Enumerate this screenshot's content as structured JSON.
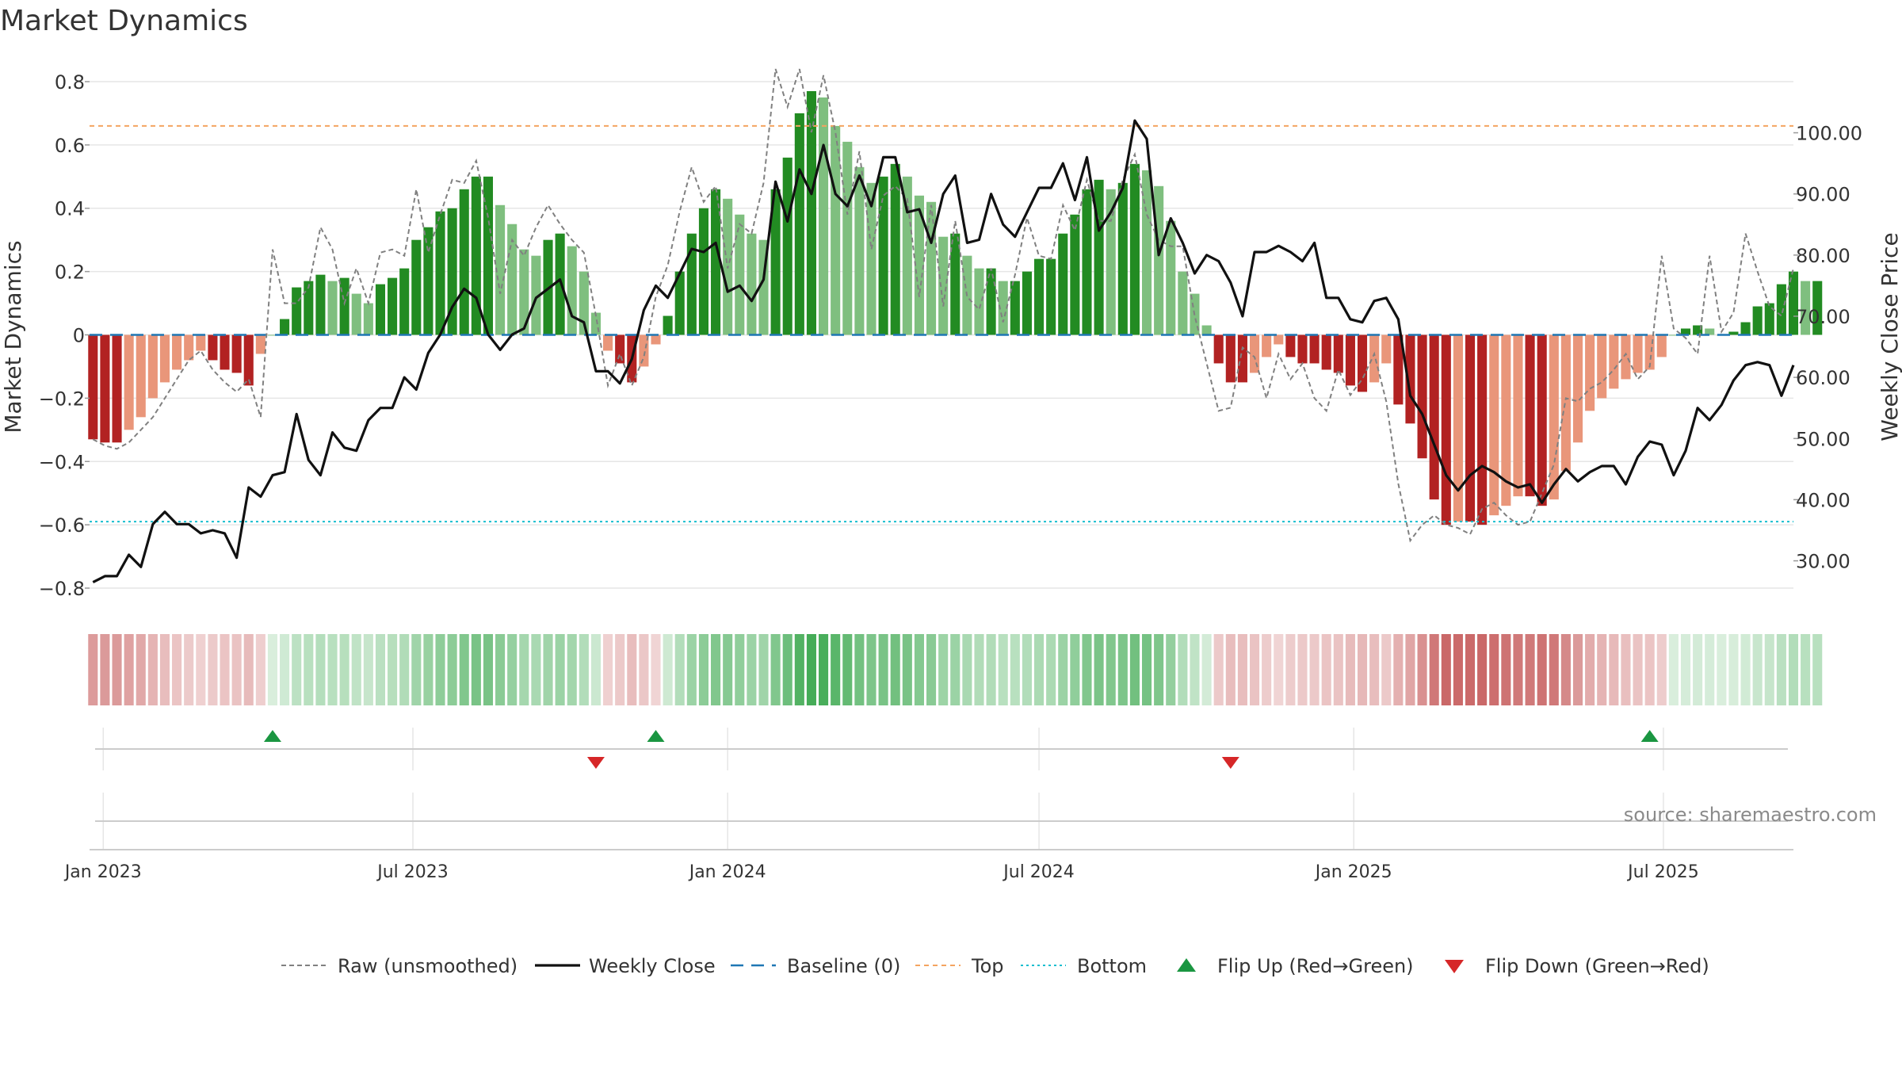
{
  "chart_data": {
    "type": "bar",
    "title": "Market Dynamics",
    "ylabel": "Market Dynamics",
    "ylabel_right": "Weekly Close Price",
    "ylim": [
      -0.82,
      0.82
    ],
    "ylim_right": [
      24.5,
      109.4
    ],
    "yticks": [
      {
        "value": 0.8,
        "label": "0.8"
      },
      {
        "value": 0.6,
        "label": "0.6"
      },
      {
        "value": 0.4,
        "label": "0.4"
      },
      {
        "value": 0.2,
        "label": "0.2"
      },
      {
        "value": 0,
        "label": "0"
      },
      {
        "value": -0.2,
        "label": "−0.2"
      },
      {
        "value": -0.4,
        "label": "−0.4"
      },
      {
        "value": -0.6,
        "label": "−0.6"
      },
      {
        "value": -0.8,
        "label": "−0.8"
      }
    ],
    "yticks_right": [
      {
        "value": 100,
        "label": "100.00"
      },
      {
        "value": 90,
        "label": "90.00"
      },
      {
        "value": 80,
        "label": "80.00"
      },
      {
        "value": 70,
        "label": "70.00"
      },
      {
        "value": 60,
        "label": "60.00"
      },
      {
        "value": 50,
        "label": "50.00"
      },
      {
        "value": 40,
        "label": "40.00"
      },
      {
        "value": 30,
        "label": "30.00"
      }
    ],
    "xlim": [
      "2022-12-24",
      "2025-09-15"
    ],
    "xticks": [
      {
        "date": "2023-01-01",
        "label": "Jan 2023"
      },
      {
        "date": "2023-07-01",
        "label": "Jul 2023"
      },
      {
        "date": "2024-01-01",
        "label": "Jan 2024"
      },
      {
        "date": "2024-07-01",
        "label": "Jul 2024"
      },
      {
        "date": "2025-01-01",
        "label": "Jan 2025"
      },
      {
        "date": "2025-07-01",
        "label": "Jul 2025"
      }
    ],
    "start_date": "2022-12-26",
    "week_step_days": 7,
    "smoothed": [
      -0.33,
      -0.34,
      -0.34,
      -0.3,
      -0.26,
      -0.2,
      -0.15,
      -0.11,
      -0.08,
      -0.05,
      -0.08,
      -0.11,
      -0.12,
      -0.16,
      -0.06,
      0.0,
      0.05,
      0.15,
      0.17,
      0.19,
      0.17,
      0.18,
      0.13,
      0.1,
      0.16,
      0.18,
      0.21,
      0.3,
      0.34,
      0.39,
      0.4,
      0.46,
      0.5,
      0.5,
      0.41,
      0.35,
      0.27,
      0.25,
      0.3,
      0.32,
      0.28,
      0.2,
      0.07,
      -0.05,
      -0.09,
      -0.15,
      -0.1,
      -0.03,
      0.06,
      0.2,
      0.32,
      0.4,
      0.46,
      0.43,
      0.38,
      0.32,
      0.3,
      0.46,
      0.56,
      0.7,
      0.77,
      0.75,
      0.66,
      0.61,
      0.53,
      0.48,
      0.5,
      0.54,
      0.5,
      0.44,
      0.42,
      0.31,
      0.32,
      0.25,
      0.21,
      0.21,
      0.17,
      0.17,
      0.2,
      0.24,
      0.24,
      0.32,
      0.38,
      0.46,
      0.49,
      0.46,
      0.48,
      0.54,
      0.52,
      0.47,
      0.36,
      0.2,
      0.13,
      0.03,
      -0.09,
      -0.15,
      -0.15,
      -0.12,
      -0.07,
      -0.03,
      -0.07,
      -0.09,
      -0.09,
      -0.11,
      -0.12,
      -0.16,
      -0.18,
      -0.15,
      -0.09,
      -0.22,
      -0.28,
      -0.39,
      -0.52,
      -0.6,
      -0.59,
      -0.59,
      -0.6,
      -0.57,
      -0.54,
      -0.51,
      -0.51,
      -0.54,
      -0.52,
      -0.43,
      -0.34,
      -0.24,
      -0.2,
      -0.17,
      -0.14,
      -0.12,
      -0.11,
      -0.07,
      0.0,
      0.02,
      0.03,
      0.02,
      0.0,
      0.01,
      0.04,
      0.09,
      0.1,
      0.16,
      0.2,
      0.17,
      0.17
    ],
    "raw": [
      -0.33,
      -0.35,
      -0.36,
      -0.34,
      -0.3,
      -0.26,
      -0.2,
      -0.14,
      -0.08,
      -0.05,
      -0.11,
      -0.15,
      -0.18,
      -0.14,
      -0.26,
      0.27,
      0.1,
      0.1,
      0.15,
      0.34,
      0.27,
      0.1,
      0.21,
      0.1,
      0.26,
      0.27,
      0.25,
      0.46,
      0.26,
      0.38,
      0.49,
      0.48,
      0.55,
      0.37,
      0.13,
      0.3,
      0.25,
      0.34,
      0.41,
      0.35,
      0.3,
      0.26,
      0.06,
      -0.16,
      -0.06,
      -0.16,
      -0.07,
      0.12,
      0.22,
      0.39,
      0.53,
      0.42,
      0.47,
      0.21,
      0.35,
      0.32,
      0.48,
      0.84,
      0.72,
      0.84,
      0.64,
      0.82,
      0.64,
      0.38,
      0.58,
      0.27,
      0.44,
      0.47,
      0.43,
      0.12,
      0.41,
      0.09,
      0.36,
      0.12,
      0.08,
      0.21,
      0.04,
      0.19,
      0.37,
      0.25,
      0.24,
      0.41,
      0.33,
      0.49,
      0.36,
      0.36,
      0.49,
      0.57,
      0.38,
      0.3,
      0.28,
      0.28,
      0.06,
      -0.09,
      -0.24,
      -0.23,
      -0.04,
      -0.07,
      -0.2,
      -0.06,
      -0.14,
      -0.09,
      -0.2,
      -0.24,
      -0.11,
      -0.19,
      -0.14,
      -0.06,
      -0.21,
      -0.47,
      -0.65,
      -0.6,
      -0.57,
      -0.6,
      -0.61,
      -0.63,
      -0.55,
      -0.53,
      -0.57,
      -0.6,
      -0.59,
      -0.5,
      -0.41,
      -0.2,
      -0.21,
      -0.17,
      -0.15,
      -0.11,
      -0.06,
      -0.14,
      -0.1,
      0.25,
      0.02,
      -0.01,
      -0.06,
      0.25,
      0.01,
      0.07,
      0.32,
      0.2,
      0.09,
      0.06,
      0.21
    ],
    "close": [
      26.5,
      27.5,
      27.5,
      31,
      29,
      36,
      38,
      36,
      36,
      34.5,
      35,
      34.5,
      30.5,
      42,
      40.5,
      44,
      44.5,
      54,
      46.5,
      44,
      51,
      48.5,
      48,
      53,
      55,
      55,
      60,
      58,
      64,
      67,
      71.5,
      74.5,
      73,
      67,
      64.5,
      67,
      68,
      73,
      74.5,
      76,
      70,
      69,
      61,
      61,
      59,
      63,
      71,
      75,
      73,
      77,
      81,
      80.5,
      82,
      74,
      75,
      72.5,
      76,
      92,
      85.5,
      94,
      90,
      98,
      90,
      88,
      93,
      88,
      96,
      96,
      87,
      87.5,
      82,
      90,
      93,
      82,
      82.5,
      90,
      85,
      83,
      87,
      91,
      91,
      95,
      89,
      96,
      84,
      87,
      91,
      102,
      99,
      80,
      86,
      82,
      77,
      80,
      79,
      75.5,
      70,
      80.5,
      80.5,
      81.5,
      80.5,
      79,
      82,
      73,
      73,
      69.5,
      69,
      72.5,
      73,
      69.5,
      57,
      54,
      49,
      44,
      41.5,
      44,
      45.5,
      44.5,
      43,
      42,
      42.5,
      39.5,
      42.5,
      45,
      43,
      44.5,
      45.5,
      45.5,
      42.5,
      47,
      49.5,
      49,
      44,
      48,
      55,
      53,
      55.5,
      59.5,
      62,
      62.5,
      62,
      57,
      62
    ],
    "baseline": 0,
    "top_level": 0.66,
    "bottom_level": -0.59,
    "flips": [
      {
        "date": "2023-04-10",
        "direction": "up"
      },
      {
        "date": "2023-10-16",
        "direction": "down"
      },
      {
        "date": "2023-11-20",
        "direction": "up"
      },
      {
        "date": "2024-10-21",
        "direction": "down"
      },
      {
        "date": "2025-06-23",
        "direction": "up"
      }
    ],
    "legend": {
      "raw": "Raw (unsmoothed)",
      "close": "Weekly Close",
      "baseline": "Baseline (0)",
      "top": "Top",
      "bottom": "Bottom",
      "flip_up": "Flip Up (Red→Green)",
      "flip_down": "Flip Down (Green→Red)"
    },
    "legend_placement": "bottom",
    "grid": true,
    "annotation": "source: sharemaestro.com"
  },
  "colors": {
    "strong_green": "#228b22",
    "light_green": "#7fbf7f",
    "strong_red": "#b22222",
    "light_red": "#e9967a",
    "close_line": "#111111",
    "raw_line": "#808080",
    "baseline": "#1f77b4",
    "top": "#f4a460",
    "bottom": "#17becf",
    "flip_up": "#1a9641",
    "flip_down": "#d62728",
    "grid": "#e6e6e6",
    "axis_text": "#333333"
  }
}
